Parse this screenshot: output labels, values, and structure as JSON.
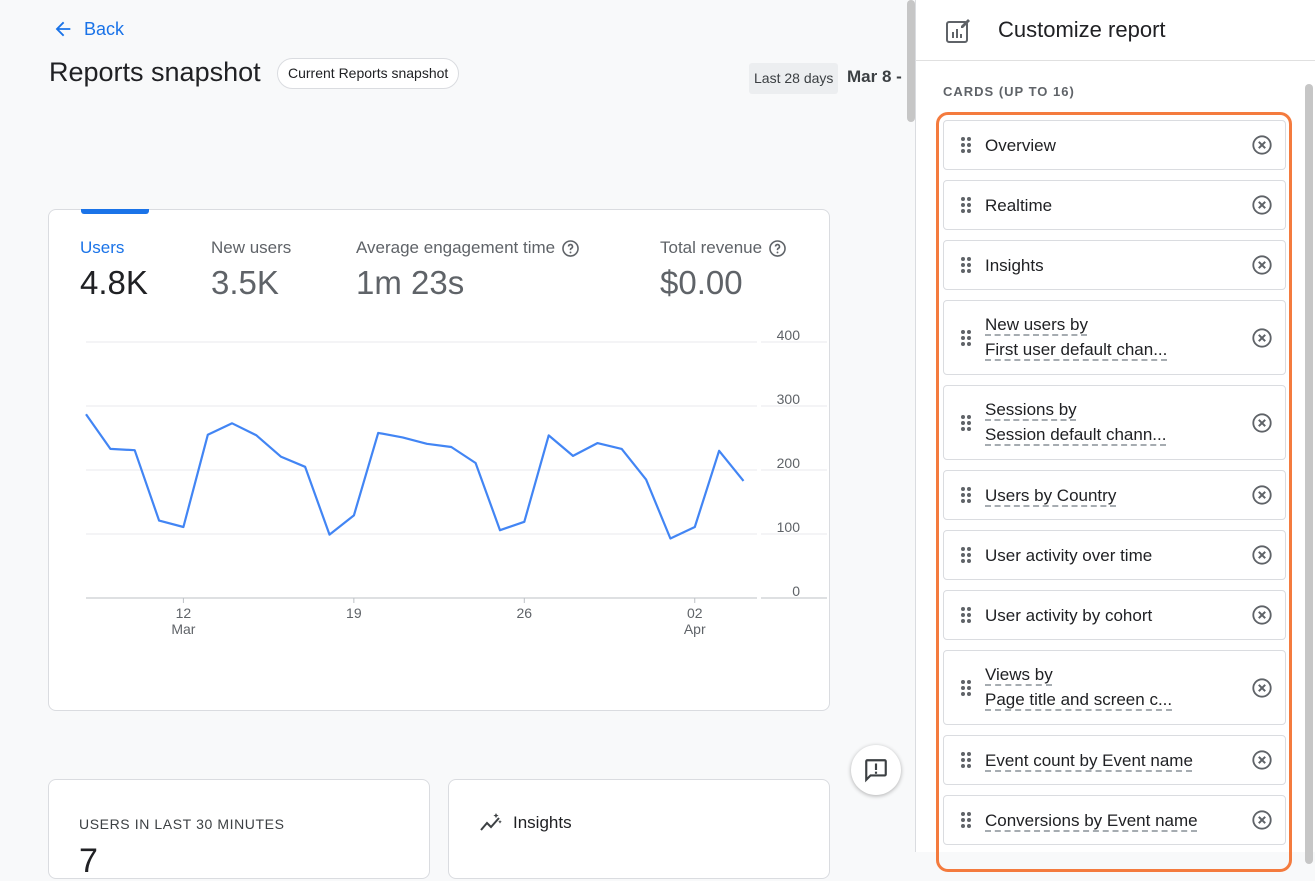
{
  "nav": {
    "back_label": "Back"
  },
  "page": {
    "title": "Reports snapshot",
    "chip": "Current Reports snapshot",
    "date_preset": "Last 28 days",
    "date_range": "Mar 8 -"
  },
  "metrics": [
    {
      "label": "Users",
      "value": "4.8K",
      "active": true
    },
    {
      "label": "New users",
      "value": "3.5K",
      "active": false
    },
    {
      "label": "Average engagement time",
      "value": "1m 23s",
      "active": false,
      "help": true
    },
    {
      "label": "Total revenue",
      "value": "$0.00",
      "active": false,
      "help": true
    }
  ],
  "chart_data": {
    "type": "line",
    "series": [
      {
        "values": [
          287,
          233,
          231,
          121,
          111,
          255,
          273,
          254,
          221,
          205,
          99,
          129,
          258,
          251,
          241,
          236,
          211,
          106,
          119,
          254,
          222,
          242,
          233,
          185,
          93,
          111,
          230,
          183
        ]
      }
    ],
    "x_ticks": [
      {
        "day": "12",
        "month": "Mar",
        "index": 4
      },
      {
        "day": "19",
        "month": "",
        "index": 11
      },
      {
        "day": "26",
        "month": "",
        "index": 18
      },
      {
        "day": "02",
        "month": "Apr",
        "index": 25
      }
    ],
    "y_ticks": [
      0,
      100,
      200,
      300,
      400
    ],
    "ylim": [
      0,
      400
    ],
    "color": "#4285f4"
  },
  "realtime": {
    "title": "USERS IN LAST 30 MINUTES",
    "value": "7"
  },
  "insights": {
    "title": "Insights"
  },
  "panel": {
    "title": "Customize report",
    "section_label": "CARDS (UP TO 16)",
    "items": [
      {
        "text": "Overview"
      },
      {
        "text": "Realtime"
      },
      {
        "text": "Insights"
      },
      {
        "line1": "New users by",
        "line2": "First user default chan..."
      },
      {
        "line1": "Sessions by",
        "line2": "Session default chann..."
      },
      {
        "text": "Users by Country"
      },
      {
        "text": "User activity over time"
      },
      {
        "text": "User activity by cohort"
      },
      {
        "line1": "Views by",
        "line2": "Page title and screen c..."
      },
      {
        "text": "Event count by Event name"
      },
      {
        "text": "Conversions by Event name"
      }
    ]
  },
  "colors": {
    "accent": "#1a73e8",
    "highlight": "#f47b3e"
  }
}
